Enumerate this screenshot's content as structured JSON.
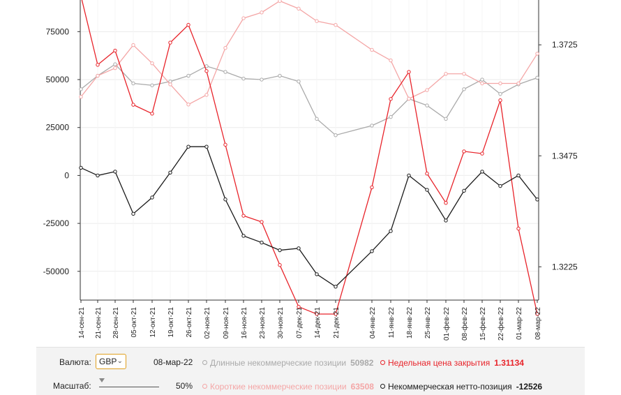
{
  "chart_data": {
    "type": "line",
    "x": [
      "14-сен-21",
      "21-сен-21",
      "28-сен-21",
      "05-окт-21",
      "12-окт-21",
      "19-окт-21",
      "26-окт-21",
      "02-ноя-21",
      "09-ноя-21",
      "16-ноя-21",
      "23-ноя-21",
      "30-ноя-21",
      "07-дек-21",
      "14-дек-21",
      "21-дек-21",
      "04-янв-22",
      "11-янв-22",
      "18-янв-22",
      "25-янв-22",
      "01-фев-22",
      "08-фев-22",
      "15-фев-22",
      "22-фев-22",
      "01-мар-22",
      "08-мар-22"
    ],
    "x_ticks": [
      "14-сен-21",
      "21-сен-21",
      "28-сен-21",
      "05-окт-21",
      "12-окт-21",
      "19-окт-21",
      "26-окт-21",
      "02-ноя-21",
      "09-ноя-21",
      "16-ноя-21",
      "23-ноя-21",
      "30-ноя-21",
      "07-дек-21",
      "14-дек-21",
      "21-дек-21",
      "04-янв-22",
      "11-янв-22",
      "18-янв-22",
      "25-янв-22",
      "01-фев-22",
      "08-фев-22",
      "15-фев-22",
      "22-фев-22",
      "01-мар-22",
      "08-мар-22"
    ],
    "y_left": {
      "lim": [
        -65000,
        91500
      ],
      "ticks": [
        75000,
        50000,
        25000,
        0,
        -25000,
        -50000
      ]
    },
    "y_right": {
      "lim": [
        1.315,
        1.3826
      ],
      "ticks": [
        1.3725,
        1.3475,
        1.3225
      ],
      "tick_labels": [
        "1.3725",
        "1.3475",
        "1.3225"
      ]
    },
    "grid": true,
    "series": [
      {
        "name": "Длинные некоммерческие позиции",
        "axis": "left",
        "color": "#aaaaaa",
        "values": [
          45000,
          52000,
          58000,
          48000,
          47000,
          49000,
          52000,
          57000,
          54000,
          50500,
          50000,
          52000,
          49000,
          29500,
          21000,
          26000,
          30500,
          40000,
          36500,
          29500,
          45000,
          50000,
          42500,
          47500,
          50982
        ]
      },
      {
        "name": "Короткие некоммерческие позиции",
        "axis": "left",
        "color": "#f4a6a6",
        "values": [
          41000,
          52000,
          56000,
          68000,
          58500,
          47500,
          37000,
          42000,
          66500,
          82000,
          85000,
          91000,
          87000,
          80500,
          78500,
          65500,
          60000,
          40000,
          44500,
          53000,
          53000,
          48000,
          48000,
          48000,
          63508
        ]
      },
      {
        "name": "Недельная цена закрытия",
        "axis": "right",
        "color": "#e8232a",
        "values": [
          1.3835,
          1.368,
          1.3712,
          1.359,
          1.357,
          1.373,
          1.377,
          1.3666,
          1.35,
          1.334,
          1.3326,
          1.3229,
          1.3135,
          1.3054,
          1.305,
          1.3404,
          1.3603,
          1.3664,
          1.3435,
          1.3369,
          1.3485,
          1.348,
          1.36,
          1.3311,
          1.3113
        ]
      },
      {
        "name": "Некоммерческая нетто-позиция",
        "axis": "left",
        "color": "#1a1a1a",
        "values": [
          4000,
          0,
          2000,
          -20000,
          -11500,
          1500,
          15000,
          15000,
          -12500,
          -31500,
          -35000,
          -39000,
          -38000,
          -51500,
          -58000,
          -39500,
          -29000,
          0,
          -7500,
          -23500,
          -8000,
          2000,
          -5500,
          0,
          -12526
        ]
      }
    ]
  },
  "controls": {
    "currency_label": "Валюта:",
    "currency_value": "GBP",
    "date": "08-мар-22",
    "scale_label": "Масштаб:",
    "scale_value": "50%",
    "scale_fraction": 0.0
  },
  "legend": [
    {
      "label": "Длинные некоммерческие позиции",
      "value": "50982",
      "color": "#aaaaaa"
    },
    {
      "label": "Недельная цена закрытия",
      "value": "1.31134",
      "color": "#e8232a"
    },
    {
      "label": "Короткие некоммерческие позиции",
      "value": "63508",
      "color": "#f4a6a6"
    },
    {
      "label": "Некоммерческая нетто-позиция",
      "value": "-12526",
      "color": "#1a1a1a"
    }
  ]
}
